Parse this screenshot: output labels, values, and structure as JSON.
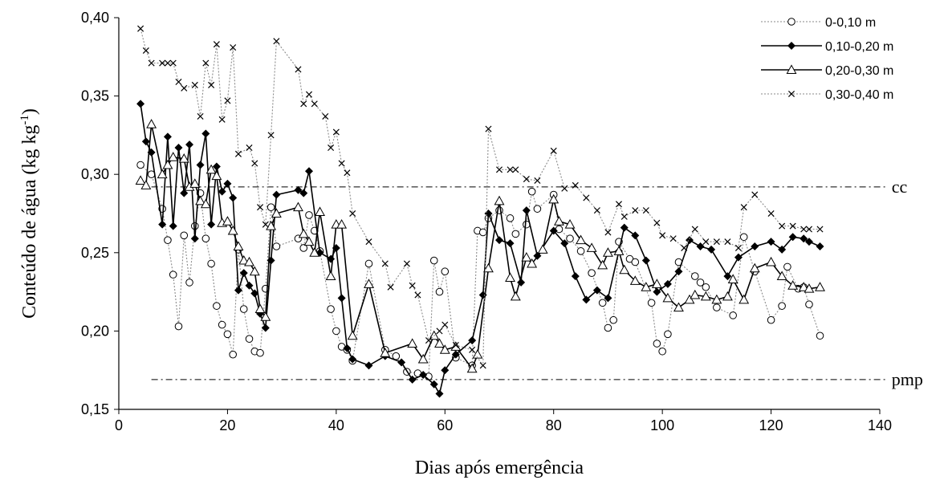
{
  "chart_data": {
    "type": "line",
    "xlabel": "Dias após emergência",
    "ylabel": "Conteúdo de água (kg kg-1)",
    "ylabel_parts": {
      "main": "Conteúdo de água (kg kg",
      "sup": "-1",
      "close": ")"
    },
    "xlim": [
      0,
      140
    ],
    "ylim": [
      0.15,
      0.4
    ],
    "x_ticks": [
      0,
      20,
      40,
      60,
      80,
      100,
      120,
      140
    ],
    "y_ticks": [
      0.15,
      0.2,
      0.25,
      0.3,
      0.35,
      0.4
    ],
    "x_tick_labels": [
      "0",
      "20",
      "40",
      "60",
      "80",
      "100",
      "120",
      "140"
    ],
    "y_tick_labels": [
      "0,15",
      "0,20",
      "0,25",
      "0,30",
      "0,35",
      "0,40"
    ],
    "grid": false,
    "legend_position": "top-right",
    "reference_lines": [
      {
        "label": "cc",
        "y": 0.292,
        "x_start": 6,
        "x_end": 141
      },
      {
        "label": "pmp",
        "y": 0.169,
        "x_start": 6,
        "x_end": 141
      }
    ],
    "series": [
      {
        "name": "0-0,10 m",
        "marker": "circle-open",
        "line": "dotted-gray",
        "x": [
          4,
          6,
          8,
          9,
          10,
          11,
          12,
          13,
          14,
          15,
          16,
          17,
          18,
          19,
          20,
          21,
          22,
          23,
          24,
          25,
          26,
          27,
          28,
          29,
          33,
          34,
          35,
          36,
          37,
          39,
          40,
          41,
          42,
          43,
          46,
          49,
          51,
          53,
          55,
          57,
          58,
          59,
          60,
          62,
          65,
          66,
          67,
          68,
          70,
          72,
          73,
          75,
          76,
          77,
          80,
          81,
          83,
          85,
          87,
          89,
          90,
          91,
          92,
          94,
          95,
          98,
          99,
          100,
          101,
          103,
          106,
          107,
          108,
          110,
          113,
          115,
          117,
          120,
          122,
          123,
          125,
          126,
          127,
          129
        ],
        "y": [
          0.306,
          0.3,
          0.278,
          0.258,
          0.236,
          0.203,
          0.261,
          0.231,
          0.267,
          0.288,
          0.259,
          0.243,
          0.216,
          0.204,
          0.198,
          0.185,
          0.252,
          0.214,
          0.195,
          0.187,
          0.186,
          0.227,
          0.279,
          0.254,
          0.259,
          0.253,
          0.274,
          0.264,
          0.251,
          0.214,
          0.2,
          0.19,
          0.188,
          0.181,
          0.243,
          0.188,
          0.184,
          0.174,
          0.173,
          0.171,
          0.245,
          0.225,
          0.238,
          0.183,
          0.178,
          0.264,
          0.263,
          0.272,
          0.277,
          0.272,
          0.262,
          0.268,
          0.289,
          0.278,
          0.287,
          0.265,
          0.259,
          0.251,
          0.237,
          0.218,
          0.202,
          0.207,
          0.257,
          0.246,
          0.244,
          0.218,
          0.192,
          0.187,
          0.198,
          0.244,
          0.235,
          0.231,
          0.228,
          0.215,
          0.21,
          0.26,
          0.238,
          0.207,
          0.216,
          0.241,
          0.227,
          0.228,
          0.217,
          0.197
        ]
      },
      {
        "name": "0,10-0,20 m",
        "marker": "diamond-filled",
        "line": "solid-black",
        "x": [
          4,
          5,
          6,
          8,
          9,
          10,
          11,
          12,
          13,
          14,
          15,
          16,
          17,
          18,
          19,
          20,
          21,
          22,
          23,
          24,
          25,
          26,
          27,
          28,
          29,
          33,
          34,
          35,
          37,
          39,
          40,
          41,
          42,
          43,
          46,
          49,
          52,
          54,
          56,
          58,
          59,
          60,
          62,
          65,
          67,
          68,
          70,
          72,
          74,
          75,
          77,
          80,
          82,
          84,
          86,
          88,
          90,
          92,
          93,
          95,
          97,
          99,
          101,
          103,
          105,
          107,
          109,
          112,
          114,
          117,
          120,
          122,
          124,
          126,
          127,
          129
        ],
        "y": [
          0.345,
          0.321,
          0.314,
          0.268,
          0.324,
          0.267,
          0.317,
          0.288,
          0.319,
          0.259,
          0.306,
          0.326,
          0.268,
          0.305,
          0.289,
          0.294,
          0.285,
          0.226,
          0.237,
          0.229,
          0.224,
          0.211,
          0.202,
          0.245,
          0.287,
          0.29,
          0.288,
          0.302,
          0.25,
          0.246,
          0.253,
          0.221,
          0.189,
          0.182,
          0.178,
          0.184,
          0.18,
          0.169,
          0.172,
          0.166,
          0.16,
          0.175,
          0.185,
          0.194,
          0.223,
          0.275,
          0.258,
          0.256,
          0.231,
          0.277,
          0.248,
          0.264,
          0.256,
          0.235,
          0.22,
          0.226,
          0.221,
          0.251,
          0.266,
          0.261,
          0.245,
          0.225,
          0.23,
          0.238,
          0.258,
          0.254,
          0.252,
          0.235,
          0.247,
          0.254,
          0.257,
          0.252,
          0.26,
          0.259,
          0.257,
          0.254
        ]
      },
      {
        "name": "0,20-0,30 m",
        "marker": "triangle-open",
        "line": "solid-black",
        "x": [
          4,
          5,
          6,
          8,
          9,
          10,
          12,
          13,
          14,
          15,
          16,
          17,
          18,
          19,
          20,
          21,
          22,
          23,
          24,
          25,
          26,
          27,
          28,
          29,
          33,
          34,
          35,
          36,
          37,
          39,
          40,
          41,
          43,
          46,
          49,
          54,
          56,
          58,
          59,
          60,
          62,
          65,
          66,
          68,
          70,
          72,
          73,
          75,
          76,
          78,
          80,
          81,
          83,
          85,
          87,
          89,
          90,
          92,
          93,
          95,
          97,
          99,
          101,
          103,
          105,
          106,
          108,
          110,
          112,
          113,
          115,
          117,
          120,
          122,
          124,
          126,
          127,
          129
        ],
        "y": [
          0.296,
          0.293,
          0.332,
          0.3,
          0.306,
          0.311,
          0.31,
          0.292,
          0.294,
          0.283,
          0.281,
          0.303,
          0.299,
          0.269,
          0.27,
          0.264,
          0.254,
          0.245,
          0.244,
          0.238,
          0.214,
          0.209,
          0.267,
          0.275,
          0.279,
          0.262,
          0.257,
          0.25,
          0.276,
          0.235,
          0.268,
          0.268,
          0.197,
          0.23,
          0.186,
          0.192,
          0.182,
          0.197,
          0.192,
          0.188,
          0.19,
          0.176,
          0.185,
          0.24,
          0.283,
          0.234,
          0.222,
          0.247,
          0.243,
          0.252,
          0.284,
          0.27,
          0.268,
          0.258,
          0.253,
          0.242,
          0.25,
          0.251,
          0.239,
          0.232,
          0.228,
          0.23,
          0.221,
          0.215,
          0.22,
          0.223,
          0.222,
          0.22,
          0.222,
          0.233,
          0.22,
          0.24,
          0.244,
          0.235,
          0.229,
          0.228,
          0.227,
          0.228
        ]
      },
      {
        "name": "0,30-0,40 m",
        "marker": "x",
        "line": "dotted-gray",
        "x": [
          4,
          5,
          6,
          8,
          9,
          10,
          11,
          12,
          14,
          15,
          16,
          17,
          18,
          19,
          20,
          21,
          22,
          24,
          25,
          26,
          27,
          28,
          29,
          33,
          34,
          35,
          36,
          38,
          39,
          40,
          41,
          42,
          43,
          46,
          49,
          50,
          53,
          54,
          55,
          57,
          59,
          60,
          62,
          65,
          67,
          68,
          70,
          72,
          73,
          75,
          77,
          80,
          82,
          84,
          86,
          88,
          90,
          92,
          93,
          95,
          97,
          99,
          100,
          102,
          104,
          106,
          108,
          110,
          112,
          114,
          115,
          117,
          120,
          122,
          124,
          126,
          127,
          129
        ],
        "y": [
          0.393,
          0.379,
          0.371,
          0.371,
          0.371,
          0.371,
          0.359,
          0.355,
          0.357,
          0.337,
          0.371,
          0.357,
          0.383,
          0.335,
          0.347,
          0.381,
          0.313,
          0.317,
          0.307,
          0.279,
          0.268,
          0.325,
          0.385,
          0.367,
          0.345,
          0.351,
          0.345,
          0.337,
          0.317,
          0.327,
          0.307,
          0.301,
          0.275,
          0.257,
          0.243,
          0.228,
          0.243,
          0.229,
          0.223,
          0.194,
          0.2,
          0.204,
          0.191,
          0.188,
          0.178,
          0.329,
          0.303,
          0.303,
          0.303,
          0.297,
          0.296,
          0.315,
          0.291,
          0.293,
          0.285,
          0.277,
          0.263,
          0.281,
          0.273,
          0.277,
          0.277,
          0.269,
          0.261,
          0.259,
          0.253,
          0.265,
          0.257,
          0.257,
          0.257,
          0.253,
          0.279,
          0.287,
          0.275,
          0.267,
          0.267,
          0.265,
          0.265,
          0.265
        ]
      }
    ]
  }
}
